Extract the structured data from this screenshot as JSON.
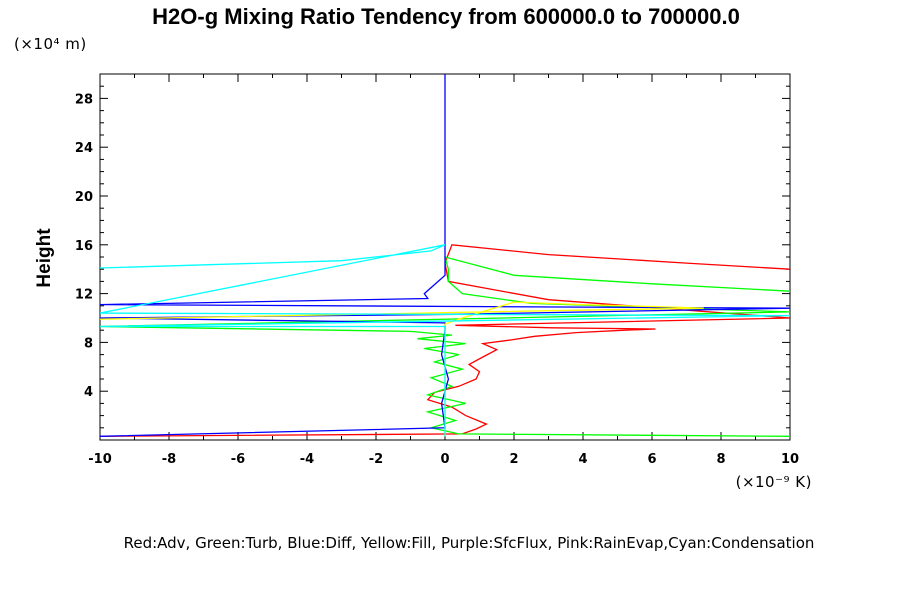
{
  "chart_data": {
    "type": "line",
    "title": "H2O-g Mixing Ratio Tendency from 600000.0 to 700000.0",
    "ylabel": "Height",
    "y_unit": "(×10⁴ m)",
    "x_unit": "(×10⁻⁹ K)",
    "xlim": [
      -10,
      10
    ],
    "ylim": [
      0,
      30
    ],
    "x_ticks": [
      "-10",
      "-8",
      "-6",
      "-4",
      "-2",
      "0",
      "2",
      "4",
      "6",
      "8",
      "10"
    ],
    "y_ticks": [
      "4",
      "8",
      "12",
      "16",
      "20",
      "24",
      "28"
    ],
    "legend_text": "Red:Adv, Green:Turb, Blue:Diff, Yellow:Fill, Purple:SfcFlux, Pink:RainEvap,Cyan:Condensation",
    "legend_placement": "bottom",
    "series": [
      {
        "name": "Adv",
        "color": "#ff0000",
        "x": [
          -10,
          0.5,
          0.9,
          1.2,
          0.6,
          0.2,
          -0.5,
          -0.3,
          0.4,
          0.9,
          1.0,
          0.7,
          1.1,
          1.5,
          1.1,
          1.9,
          2.6,
          3.8,
          5.2,
          6.1,
          3.1,
          0.3,
          10,
          3.0,
          0.1,
          0.0,
          0.2,
          3.0,
          7.0,
          10
        ],
        "y": [
          0.3,
          0.5,
          0.9,
          1.3,
          2.0,
          2.7,
          3.3,
          3.9,
          4.4,
          5.0,
          5.6,
          6.2,
          6.8,
          7.4,
          7.9,
          8.2,
          8.5,
          8.8,
          9.0,
          9.1,
          9.2,
          9.4,
          10.0,
          11.5,
          13.0,
          14.5,
          16.0,
          15.2,
          14.5,
          14.0
        ]
      },
      {
        "name": "Turb",
        "color": "#00ff00",
        "x": [
          10,
          0.4,
          -0.4,
          0.3,
          -0.5,
          0.6,
          -0.5,
          0.2,
          -0.4,
          0.5,
          -0.3,
          0.4,
          -0.6,
          0.6,
          -0.8,
          0.2,
          -1.0,
          -10,
          10,
          2.5,
          0.5,
          0.1,
          0.1,
          0.0,
          2.0,
          6.0,
          10
        ],
        "y": [
          0.3,
          0.5,
          1.0,
          1.6,
          2.3,
          3.0,
          3.7,
          4.4,
          5.1,
          5.8,
          6.4,
          7.0,
          7.5,
          7.9,
          8.3,
          8.6,
          8.9,
          9.3,
          10.5,
          11.2,
          12.0,
          13.0,
          14.0,
          15.0,
          13.5,
          12.8,
          12.2
        ]
      },
      {
        "name": "Diff",
        "color": "#0000ff",
        "x": [
          -10,
          0.0,
          -0.1,
          0.1,
          -0.1,
          0.0,
          0.0,
          -10,
          0.3,
          10,
          -10,
          -0.5,
          -0.6,
          0.0,
          0.0,
          0.0
        ],
        "y": [
          0.3,
          1.0,
          3.0,
          5.0,
          7.0,
          9.0,
          9.6,
          10.0,
          10.3,
          10.8,
          11.1,
          11.6,
          12.0,
          13.5,
          16.0,
          30.0
        ]
      },
      {
        "name": "Fill",
        "color": "#ffff00",
        "x": [
          0.0,
          0.0,
          0.5,
          2.0,
          4.0,
          6.5,
          7.5,
          3.0,
          -10
        ],
        "y": [
          0.3,
          9.5,
          10.0,
          11.3,
          11.1,
          10.9,
          10.8,
          10.6,
          9.9
        ]
      },
      {
        "name": "Condensation",
        "color": "#00ffff",
        "x": [
          0.0,
          0.0,
          0.0,
          -10,
          10,
          -10,
          0.0,
          -0.4,
          -3.0,
          -10
        ],
        "y": [
          0.3,
          5.0,
          9.3,
          9.3,
          10.2,
          10.4,
          16.0,
          15.5,
          14.7,
          14.1
        ]
      }
    ]
  }
}
